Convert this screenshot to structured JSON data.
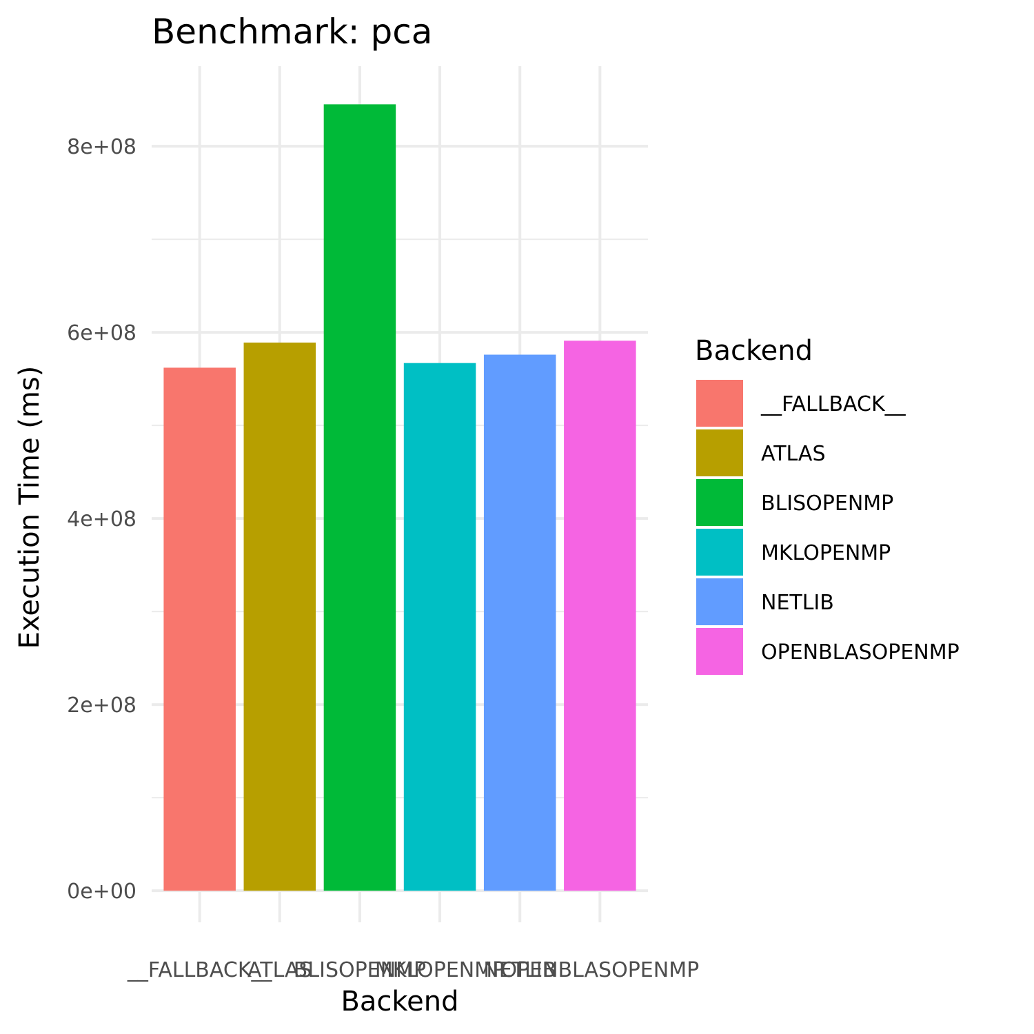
{
  "chart_data": {
    "type": "bar",
    "title": "Benchmark: pca",
    "xlabel": "Backend",
    "ylabel": "Execution Time (ms)",
    "categories": [
      "__FALLBACK__",
      "ATLAS",
      "BLISOPENMP",
      "MKLOPENMP",
      "NETLIB",
      "OPENBLASOPENMP"
    ],
    "values": [
      562000000,
      589000000,
      845000000,
      567000000,
      576000000,
      591000000
    ],
    "colors": [
      "#F8766D",
      "#B79F00",
      "#00BA38",
      "#00BFC4",
      "#619CFF",
      "#F564E3"
    ],
    "ylim": [
      -34000000,
      886000000
    ],
    "yticks": [
      0,
      200000000,
      400000000,
      600000000,
      800000000
    ],
    "ytick_labels": [
      "0e+00",
      "2e+08",
      "4e+08",
      "6e+08",
      "8e+08"
    ],
    "grid": true,
    "legend": {
      "title": "Backend",
      "position": "right",
      "entries": [
        "__FALLBACK__",
        "ATLAS",
        "BLISOPENMP",
        "MKLOPENMP",
        "NETLIB",
        "OPENBLASOPENMP"
      ]
    }
  }
}
